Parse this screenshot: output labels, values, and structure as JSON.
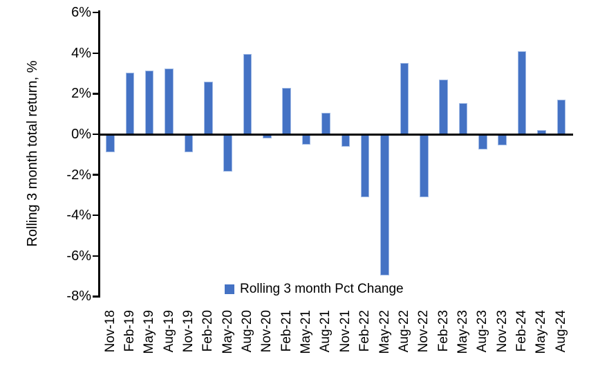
{
  "chart_data": {
    "type": "bar",
    "title": "",
    "xlabel": "",
    "ylabel": "Rolling 3 month total return, %",
    "legend": "Rolling 3 month Pct Change",
    "legend_position": "bottom-center",
    "grid": false,
    "ylim": [
      -8,
      6
    ],
    "yticks": [
      6,
      4,
      2,
      0,
      -2,
      -4,
      -6,
      -8
    ],
    "ytick_labels": [
      "6%",
      "4%",
      "2%",
      "0%",
      "-2%",
      "-4%",
      "-6%",
      "-8%"
    ],
    "bar_color": "#4472C4",
    "bar_border_color": "#A3BCE6",
    "axis_color": "#000000",
    "text_color": "#000000",
    "categories": [
      "Nov-18",
      "Feb-19",
      "May-19",
      "Aug-19",
      "Nov-19",
      "Feb-20",
      "May-20",
      "Aug-20",
      "Nov-20",
      "Feb-21",
      "May-21",
      "Aug-21",
      "Nov-21",
      "Feb-22",
      "May-22",
      "Aug-22",
      "Nov-22",
      "Feb-23",
      "May-23",
      "Aug-23",
      "Nov-23",
      "Feb-24",
      "May-24",
      "Aug-24"
    ],
    "values": [
      -0.9,
      3.05,
      3.15,
      3.25,
      -0.9,
      2.6,
      -1.85,
      3.95,
      -0.2,
      2.3,
      -0.5,
      1.05,
      -0.6,
      -3.1,
      -6.95,
      3.5,
      -3.1,
      2.7,
      1.55,
      -0.75,
      -0.55,
      4.1,
      0.2,
      1.7
    ]
  }
}
